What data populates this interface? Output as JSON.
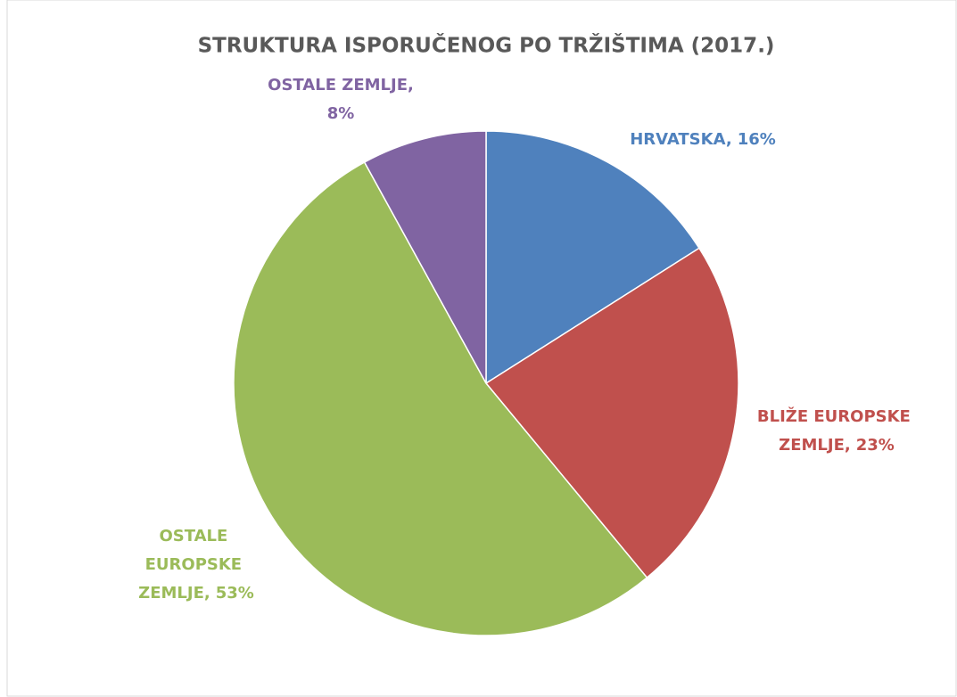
{
  "chart_data": {
    "type": "pie",
    "title": "STRUKTURA ISPORUČENOG PO TRŽIŠTIMA (2017.)",
    "categories": [
      "HRVATSKA,",
      "BLIŽE EUROPSKE ZEMLJE,",
      "OSTALE EUROPSKE ZEMLJE,",
      "OSTALE ZEMLJE,"
    ],
    "values": [
      16,
      23,
      53,
      8
    ],
    "value_labels": [
      "16%",
      "23%",
      "53%",
      "8%"
    ],
    "colors": [
      "#4f81bd",
      "#c0504d",
      "#9bbb59",
      "#8064a2"
    ]
  }
}
